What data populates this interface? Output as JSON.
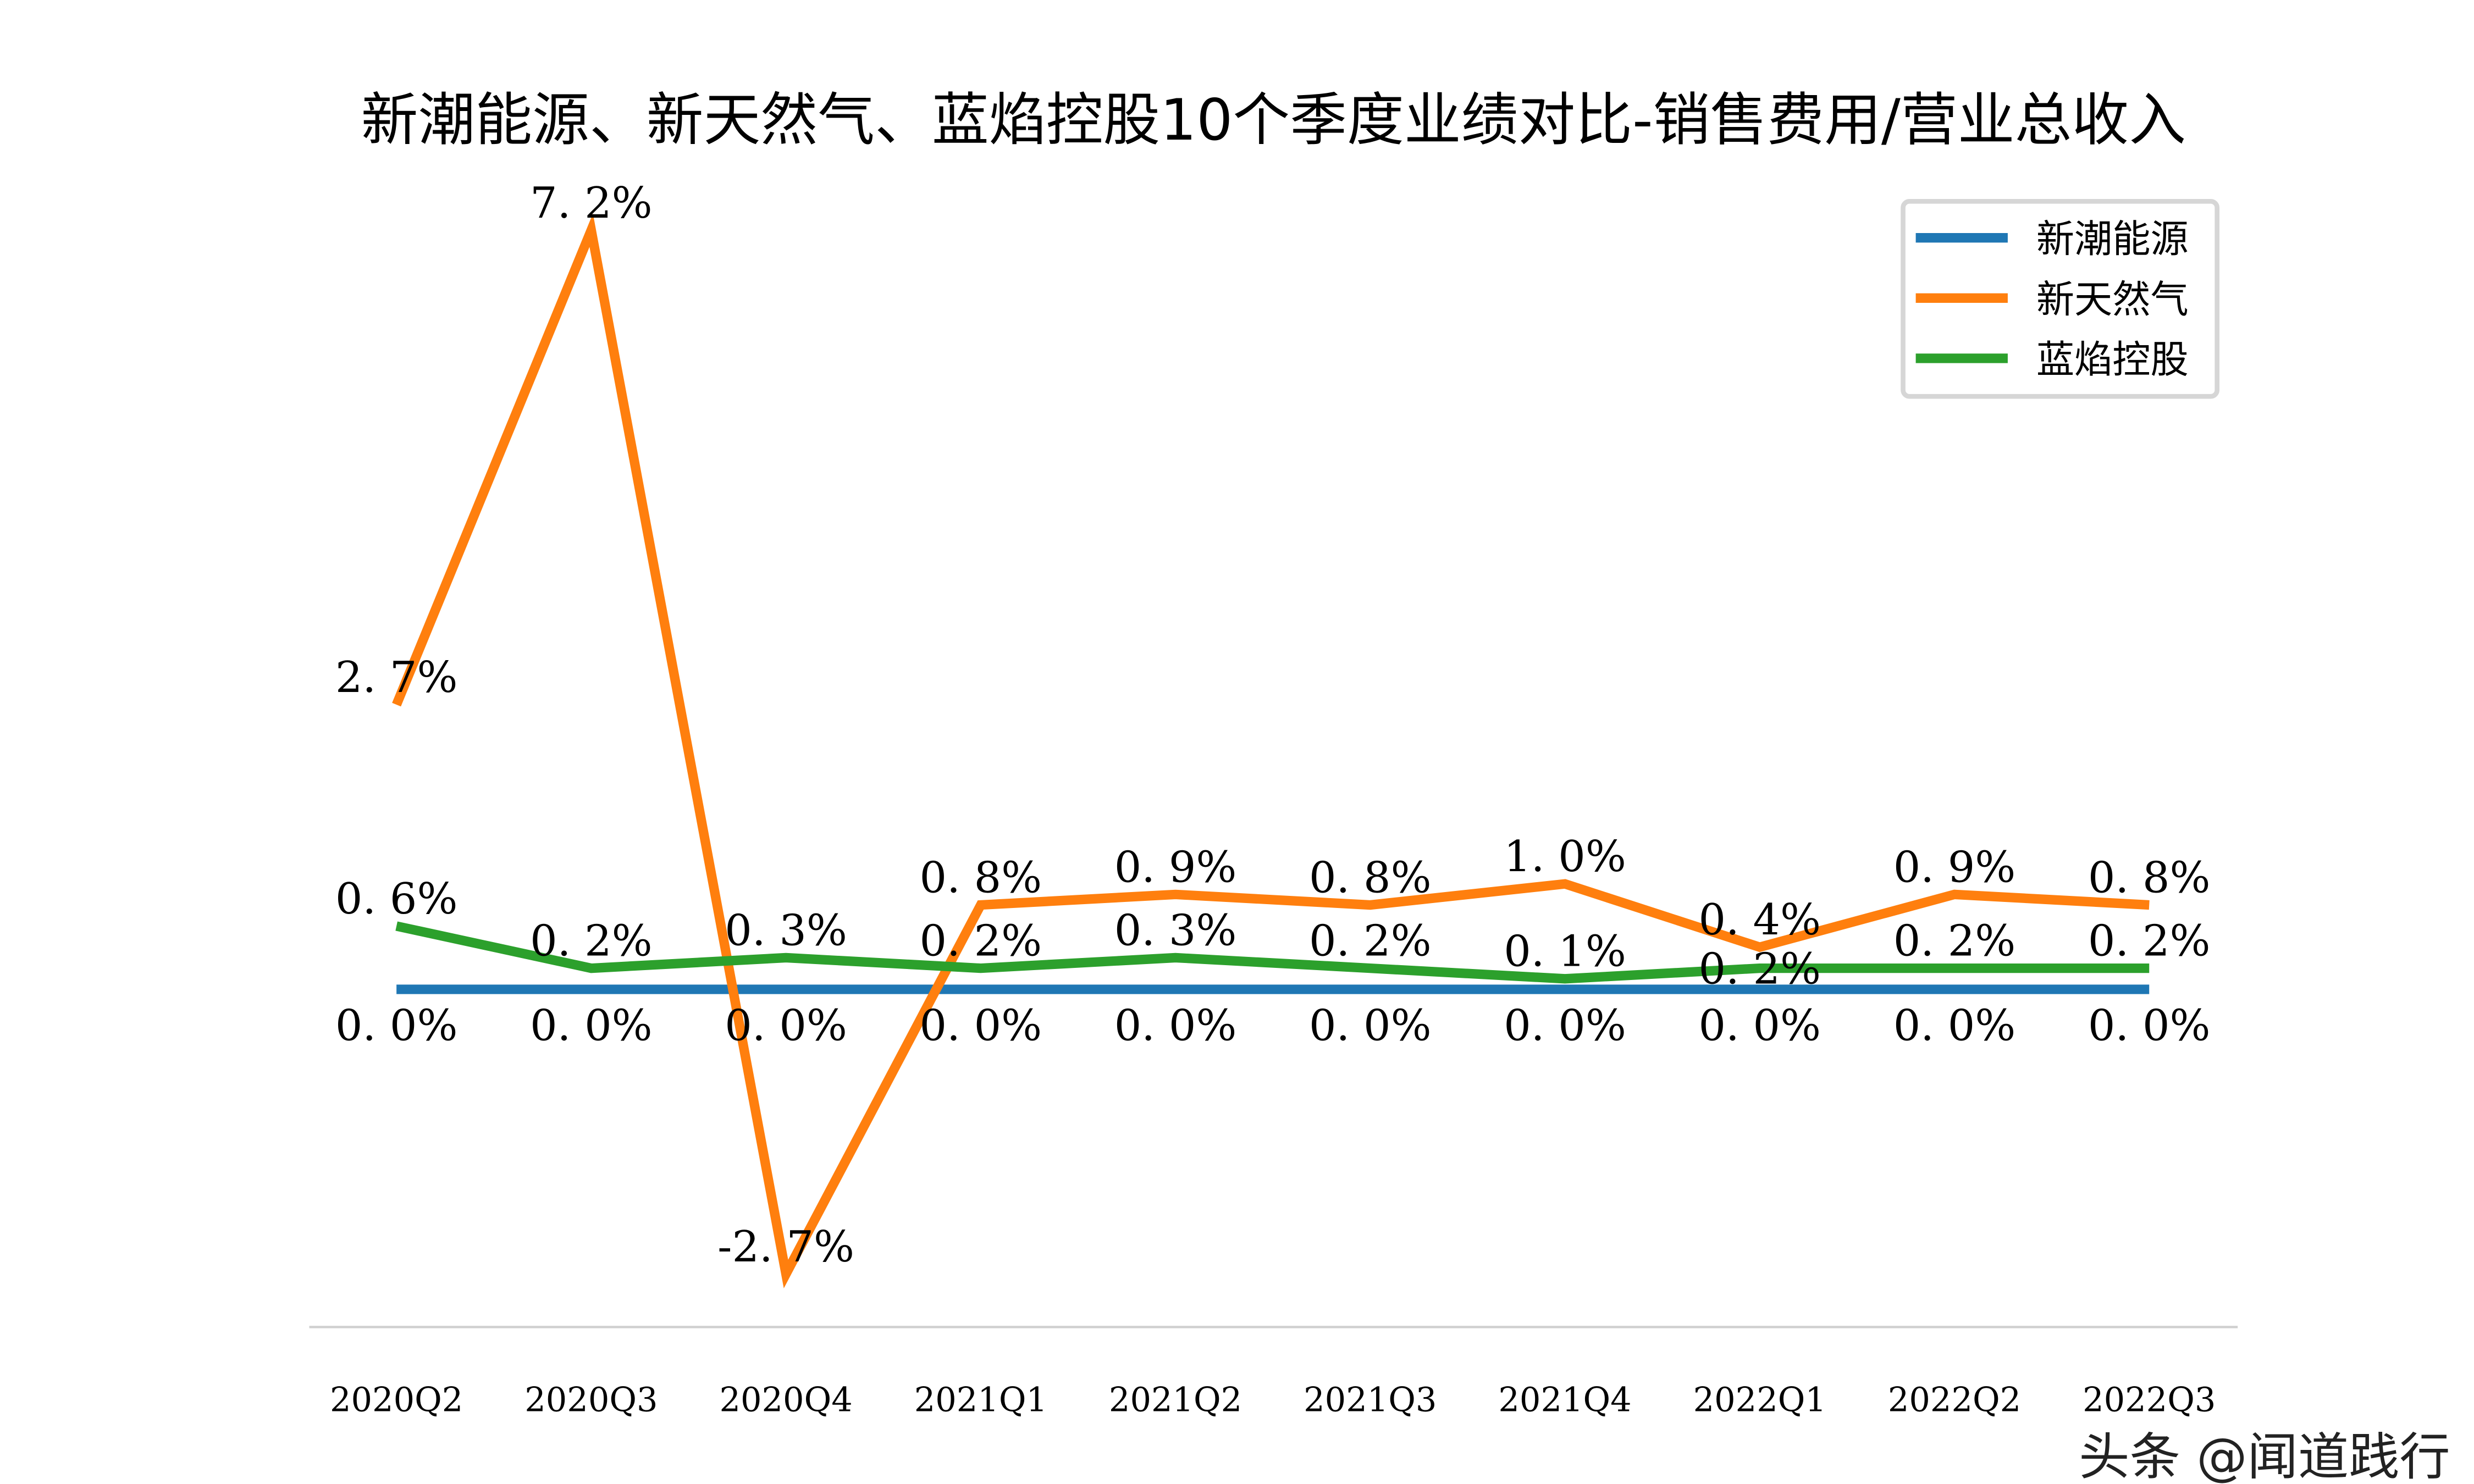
{
  "chart_data": {
    "type": "line",
    "title": "新潮能源、新天然气、蓝焰控股10个季度业绩对比-销售费用/营业总收入",
    "categories": [
      "2020Q2",
      "2020Q3",
      "2020Q4",
      "2021Q1",
      "2021Q2",
      "2021Q3",
      "2021Q4",
      "2022Q1",
      "2022Q2",
      "2022Q3"
    ],
    "ylim": [
      -3.2,
      7.6
    ],
    "unit": "%",
    "grid": false,
    "legend_position": "top-right",
    "series": [
      {
        "name": "新潮能源",
        "color": "#1f77b4",
        "values": [
          0,
          0,
          0,
          0,
          0,
          0,
          0,
          0,
          0,
          0
        ]
      },
      {
        "name": "新天然气",
        "color": "#ff7f0e",
        "values": [
          2.7,
          7.2,
          -2.7,
          0.8,
          0.9,
          0.8,
          1.0,
          0.4,
          0.9,
          0.8
        ]
      },
      {
        "name": "蓝焰控股",
        "color": "#2ca02c",
        "values": [
          0.6,
          0.2,
          0.3,
          0.2,
          0.3,
          0.2,
          0.1,
          0.2,
          0.2,
          0.2
        ]
      }
    ]
  },
  "watermark": "头条 @闻道践行"
}
